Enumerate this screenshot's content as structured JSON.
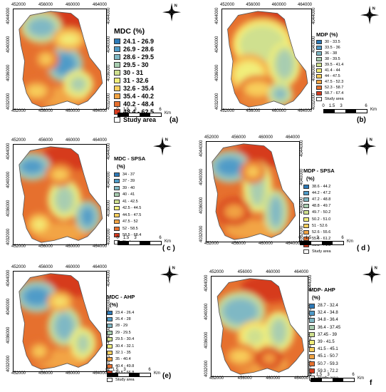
{
  "x_ticks": [
    "452000",
    "456000",
    "460000",
    "464000"
  ],
  "y_ticks": [
    "4032000",
    "4036000",
    "4040000",
    "4044000"
  ],
  "scale": {
    "labels": [
      "0",
      "1.5",
      "3",
      "6"
    ],
    "unit": "Km"
  },
  "north_arrow": "compass-rose-icon",
  "panels": [
    {
      "id": "a",
      "label": "(a)",
      "title_lines": [
        "MDC (%)"
      ],
      "classes": [
        "24.1 - 26.9",
        "26.9 - 28.6",
        "28.6 - 29.5",
        "29.5 - 30",
        "30 - 31",
        "31 - 32.6",
        "32.6 - 35.4",
        "35.4 - 40.2",
        "40.2 - 48.4",
        "48.4 - 62.5"
      ],
      "study_area": "Study area"
    },
    {
      "id": "b",
      "label": "(b)",
      "title_lines": [
        "MDP (%)"
      ],
      "classes": [
        "30 - 33.5",
        "33.5 - 36",
        "36 - 38",
        "38 - 39.5",
        "39.5 - 41.4",
        "41.4 - 44",
        "44 - 47.5",
        "47.5 - 52.3",
        "52.3 - 58.7",
        "58.7 - 67.4"
      ],
      "study_area": "Study area"
    },
    {
      "id": "c",
      "label": "( c )",
      "title_lines": [
        "MDC - SPSA",
        "(%)"
      ],
      "classes": [
        "34 - 37",
        "37 - 39",
        "39 - 40",
        "40 - 41",
        "41 - 42.5",
        "42.5 - 44.5",
        "44.5 - 47.5",
        "47.5 - 52",
        "52 - 58.5",
        "58.5 - 68.4"
      ],
      "study_area": "Study area"
    },
    {
      "id": "d",
      "label": "( d )",
      "title_lines": [
        "MDP - SPSA",
        "(%)"
      ],
      "classes": [
        "38.6 - 44.2",
        "44.2 - 47.2",
        "47.2 - 48.8",
        "48.8 - 49.7",
        "49.7 - 50.2",
        "50.2 - 51.0",
        "51 - 52.6",
        "52.6 - 55.6",
        "55.6 - 61.2",
        "61.2 - 71.5"
      ],
      "study_area": "Study area"
    },
    {
      "id": "e",
      "label": "(e)",
      "title_lines": [
        "MDC - AHP",
        "(%)"
      ],
      "classes": [
        "23.4 - 26.4",
        "26.4 - 28",
        "28 - 29",
        "29 - 29.5",
        "29.5 - 30.4",
        "30.4 - 32.1",
        "32.1 - 35",
        "35 - 40.4",
        "40.4 - 49.8",
        "49.8 - 66.8"
      ],
      "study_area": "Study area"
    },
    {
      "id": "f",
      "label": "f",
      "title_lines": [
        "MDP- AHP",
        "(%)"
      ],
      "classes": [
        "28.7 - 32.4",
        "32.4 - 34.8",
        "34.8 - 36.4",
        "36.4 - 37.45",
        "37.45 - 39",
        "39 - 41.5",
        "41.5 - 45.1",
        "45.1 - 50.7",
        "50.7 - 59.3",
        "59.3 - 72.2"
      ],
      "study_area": "Study area"
    }
  ],
  "class_colors": [
    "#2d7ab8",
    "#4f9bc8",
    "#7fb8c4",
    "#a8cdb0",
    "#cfe08f",
    "#f1ee7a",
    "#f8cf5c",
    "#f2a444",
    "#e6702e",
    "#d63b1f"
  ]
}
